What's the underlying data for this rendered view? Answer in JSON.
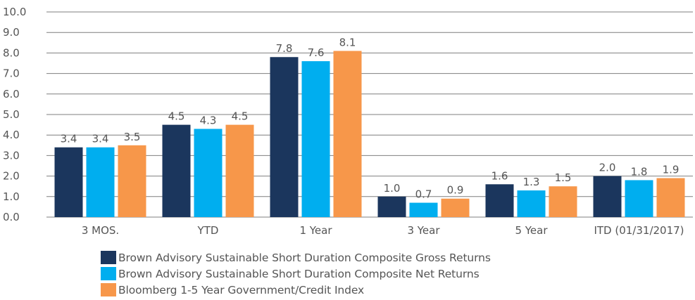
{
  "chart_data": {
    "type": "bar",
    "categories": [
      "3 MOS.",
      "YTD",
      "1 Year",
      "3 Year",
      "5 Year",
      "ITD (01/31/2017)"
    ],
    "series": [
      {
        "name": "Brown Advisory Sustainable Short Duration Composite Gross Returns",
        "values": [
          3.4,
          4.5,
          7.8,
          1.0,
          1.6,
          2.0
        ],
        "labels": [
          "3.4",
          "4.5",
          "7.8",
          "1.0",
          "1.6",
          "2.0"
        ],
        "color": "#1b365d"
      },
      {
        "name": "Brown Advisory Sustainable Short Duration Composite Net Returns",
        "values": [
          3.4,
          4.3,
          7.6,
          0.7,
          1.3,
          1.8
        ],
        "labels": [
          "3.4",
          "4.3",
          "7.6",
          "0.7",
          "1.3",
          "1.8"
        ],
        "color": "#00aeef"
      },
      {
        "name": "Bloomberg 1-5 Year Government/Credit Index",
        "values": [
          3.5,
          4.5,
          8.1,
          0.9,
          1.5,
          1.9
        ],
        "labels": [
          "3.5",
          "4.5",
          "8.1",
          "0.9",
          "1.5",
          "1.9"
        ],
        "color": "#f7974a"
      }
    ],
    "yticks": [
      "0.0",
      "1.0",
      "2.0",
      "3.0",
      "4.0",
      "5.0",
      "6.0",
      "7.0",
      "8.0",
      "9.0",
      "10.0"
    ],
    "ylim": [
      0,
      10
    ],
    "grid": true,
    "legend_position": "bottom-left",
    "title": "",
    "xlabel": "",
    "ylabel": ""
  }
}
